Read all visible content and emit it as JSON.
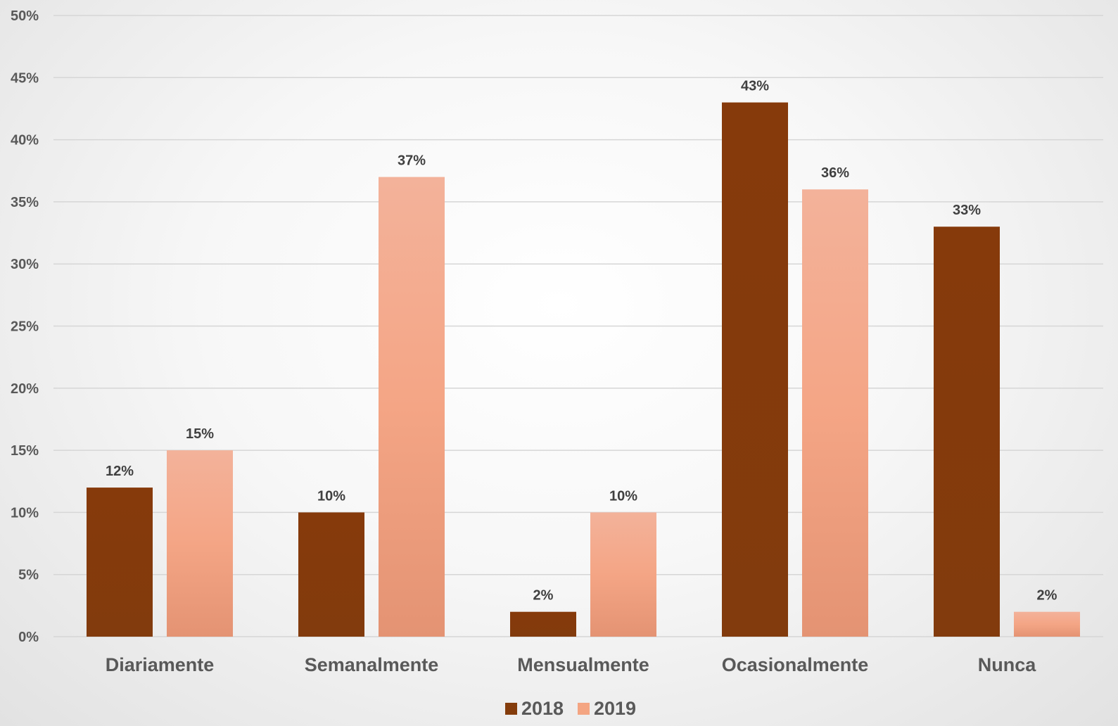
{
  "chart_data": {
    "type": "bar",
    "title": "",
    "xlabel": "",
    "ylabel": "",
    "categories": [
      "Diariamente",
      "Semanalmente",
      "Mensualmente",
      "Ocasionalmente",
      "Nunca"
    ],
    "series": [
      {
        "name": "2018",
        "values": [
          12,
          10,
          2,
          43,
          33
        ],
        "labels": [
          "12%",
          "10%",
          "2%",
          "43%",
          "33%"
        ],
        "color": "#843C0C"
      },
      {
        "name": "2019",
        "values": [
          15,
          37,
          10,
          36,
          2
        ],
        "labels": [
          "15%",
          "37%",
          "10%",
          "36%",
          "2%"
        ],
        "color": "#F4A582"
      }
    ],
    "ylim": [
      0,
      50
    ],
    "yticks": [
      0,
      5,
      10,
      15,
      20,
      25,
      30,
      35,
      40,
      45,
      50
    ],
    "ytick_labels": [
      "0%",
      "5%",
      "10%",
      "15%",
      "20%",
      "25%",
      "30%",
      "35%",
      "40%",
      "45%",
      "50%"
    ],
    "grid": true,
    "legend_position": "bottom"
  }
}
